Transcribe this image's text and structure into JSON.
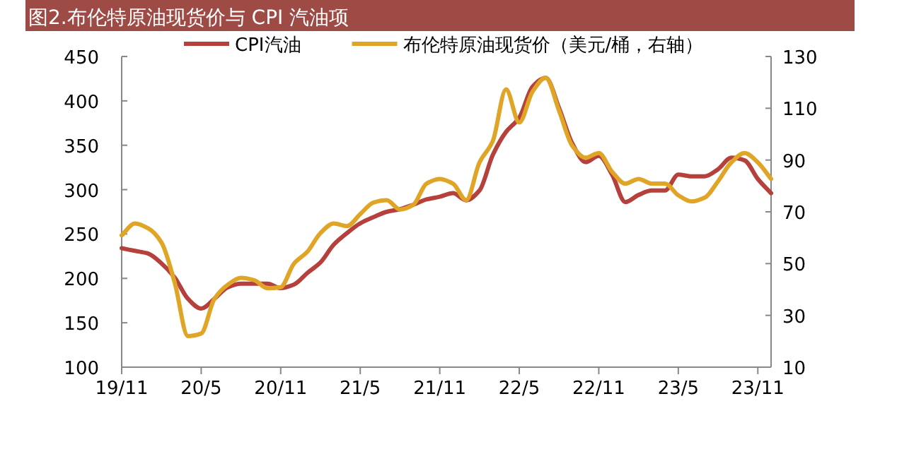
{
  "chart_data": {
    "type": "line",
    "title": "图2.布伦特原油现货价与 CPI 汽油项",
    "categories": [
      "19/11",
      null,
      null,
      null,
      null,
      null,
      "20/5",
      null,
      null,
      null,
      null,
      null,
      "20/11",
      null,
      null,
      null,
      null,
      null,
      "21/5",
      null,
      null,
      null,
      null,
      null,
      "21/11",
      null,
      null,
      null,
      null,
      null,
      "22/5",
      null,
      null,
      null,
      null,
      null,
      "22/11",
      null,
      null,
      null,
      null,
      null,
      "23/5",
      null,
      null,
      null,
      null,
      null,
      "23/11",
      null
    ],
    "series": [
      {
        "name": "CPI汽油",
        "color": "#b5403c",
        "values": [
          234,
          231,
          228,
          217,
          201,
          177,
          166,
          177,
          190,
          194,
          194,
          194,
          189,
          193,
          206,
          218,
          238,
          251,
          262,
          269,
          275,
          278,
          283,
          289,
          292,
          296,
          288,
          299,
          339,
          365,
          381,
          416,
          426,
          392,
          352,
          331,
          338,
          317,
          286,
          294,
          299,
          299,
          317,
          315,
          315,
          323,
          336,
          333,
          312,
          296
        ]
      },
      {
        "name": "布伦特原油现货价（美元/桶，右轴）",
        "color": "#e0a526",
        "axis": "y2",
        "values": [
          60.9,
          65.5,
          63.6,
          58.2,
          42.7,
          22,
          23,
          36.4,
          41.8,
          44.5,
          43.6,
          40.5,
          40.9,
          50,
          54.5,
          61.8,
          65.5,
          64.5,
          69.1,
          73.6,
          74.5,
          70.9,
          72.7,
          80.9,
          82.7,
          80.9,
          74.5,
          89.1,
          97.3,
          117.3,
          104.5,
          116.4,
          121.8,
          109.1,
          95.5,
          90.9,
          92.7,
          85.5,
          80.9,
          82.7,
          80.9,
          80.9,
          76.4,
          74,
          75.5,
          81.8,
          89.1,
          92.7,
          89.1,
          82.7
        ]
      }
    ],
    "ylim": [
      100,
      450
    ],
    "yticks": [
      100,
      150,
      200,
      250,
      300,
      350,
      400,
      450
    ],
    "y2lim": [
      10,
      130
    ],
    "y2ticks": [
      10,
      30,
      50,
      70,
      90,
      110,
      130
    ],
    "legend": "top",
    "grid": false,
    "marker": "none",
    "line_style": "solid"
  }
}
